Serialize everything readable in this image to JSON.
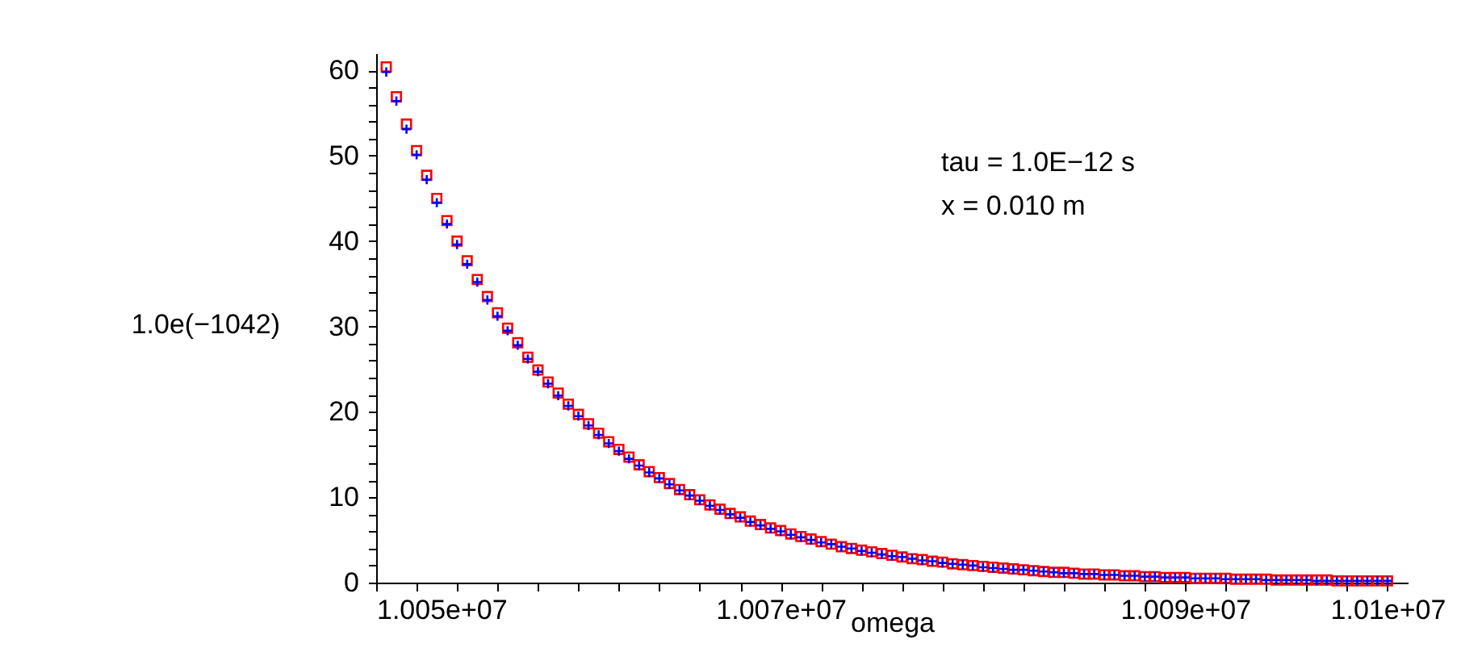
{
  "chart_data": {
    "type": "scatter",
    "xlabel": "omega",
    "ylabel": "1.0e(−1042)",
    "annotations": [
      "tau = 1.0E−12 s",
      "x = 0.010 m"
    ],
    "xlim": [
      10050000,
      10101000
    ],
    "ylim": [
      0,
      62
    ],
    "xticks": [
      {
        "value": 10050000,
        "label": "1.005e+07"
      },
      {
        "value": 10052000,
        "label": null
      },
      {
        "value": 10054000,
        "label": null
      },
      {
        "value": 10056000,
        "label": null
      },
      {
        "value": 10058000,
        "label": null
      },
      {
        "value": 10060000,
        "label": null
      },
      {
        "value": 10062000,
        "label": null
      },
      {
        "value": 10064000,
        "label": null
      },
      {
        "value": 10066000,
        "label": null
      },
      {
        "value": 10068000,
        "label": null
      },
      {
        "value": 10070000,
        "label": "1.007e+07"
      },
      {
        "value": 10072000,
        "label": null
      },
      {
        "value": 10074000,
        "label": null
      },
      {
        "value": 10076000,
        "label": null
      },
      {
        "value": 10078000,
        "label": null
      },
      {
        "value": 10080000,
        "label": null
      },
      {
        "value": 10082000,
        "label": null
      },
      {
        "value": 10084000,
        "label": null
      },
      {
        "value": 10086000,
        "label": null
      },
      {
        "value": 10088000,
        "label": null
      },
      {
        "value": 10090000,
        "label": "1.009e+07"
      },
      {
        "value": 10092000,
        "label": null
      },
      {
        "value": 10094000,
        "label": null
      },
      {
        "value": 10096000,
        "label": null
      },
      {
        "value": 10098000,
        "label": null
      },
      {
        "value": 10100000,
        "label": "1.01e+07"
      }
    ],
    "yticks": [
      0,
      {
        "value": 2,
        "label": null
      },
      {
        "value": 4,
        "label": null
      },
      {
        "value": 6,
        "label": null
      },
      {
        "value": 8,
        "label": null
      },
      10,
      {
        "value": 12,
        "label": null
      },
      {
        "value": 14,
        "label": null
      },
      {
        "value": 16,
        "label": null
      },
      {
        "value": 18,
        "label": null
      },
      20,
      {
        "value": 22,
        "label": null
      },
      {
        "value": 24,
        "label": null
      },
      {
        "value": 26,
        "label": null
      },
      {
        "value": 28,
        "label": null
      },
      30,
      {
        "value": 32,
        "label": null
      },
      {
        "value": 34,
        "label": null
      },
      {
        "value": 36,
        "label": null
      },
      {
        "value": 38,
        "label": null
      },
      40,
      {
        "value": 42,
        "label": null
      },
      {
        "value": 44,
        "label": null
      },
      {
        "value": 46,
        "label": null
      },
      {
        "value": 48,
        "label": null
      },
      50,
      {
        "value": 52,
        "label": null
      },
      {
        "value": 54,
        "label": null
      },
      {
        "value": 56,
        "label": null
      },
      {
        "value": 58,
        "label": null
      },
      60
    ],
    "x": [
      10050500,
      10051000,
      10051500,
      10052000,
      10052500,
      10053000,
      10053500,
      10054000,
      10054500,
      10055000,
      10055500,
      10056000,
      10056500,
      10057000,
      10057500,
      10058000,
      10058500,
      10059000,
      10059500,
      10060000,
      10060500,
      10061000,
      10061500,
      10062000,
      10062500,
      10063000,
      10063500,
      10064000,
      10064500,
      10065000,
      10065500,
      10066000,
      10066500,
      10067000,
      10067500,
      10068000,
      10068500,
      10069000,
      10069500,
      10070000,
      10070500,
      10071000,
      10071500,
      10072000,
      10072500,
      10073000,
      10073500,
      10074000,
      10074500,
      10075000,
      10075500,
      10076000,
      10076500,
      10077000,
      10077500,
      10078000,
      10078500,
      10079000,
      10079500,
      10080000,
      10080500,
      10081000,
      10081500,
      10082000,
      10082500,
      10083000,
      10083500,
      10084000,
      10084500,
      10085000,
      10085500,
      10086000,
      10086500,
      10087000,
      10087500,
      10088000,
      10088500,
      10089000,
      10089500,
      10090000,
      10090500,
      10091000,
      10091500,
      10092000,
      10092500,
      10093000,
      10093500,
      10094000,
      10094500,
      10095000,
      10095500,
      10096000,
      10096500,
      10097000,
      10097500,
      10098000,
      10098500,
      10099000,
      10099500,
      10100000
    ],
    "series": [
      {
        "color": "#ff0000",
        "marker": "square",
        "values": [
          60.4,
          56.9,
          53.7,
          50.6,
          47.7,
          45.0,
          42.4,
          40.0,
          37.7,
          35.5,
          33.5,
          31.6,
          29.8,
          28.1,
          26.4,
          24.9,
          23.5,
          22.2,
          20.9,
          19.7,
          18.6,
          17.5,
          16.5,
          15.6,
          14.7,
          13.8,
          13.0,
          12.3,
          11.6,
          10.9,
          10.3,
          9.7,
          9.1,
          8.6,
          8.1,
          7.7,
          7.2,
          6.8,
          6.4,
          6.1,
          5.7,
          5.4,
          5.1,
          4.8,
          4.5,
          4.2,
          4.0,
          3.8,
          3.6,
          3.4,
          3.2,
          3.0,
          2.8,
          2.7,
          2.5,
          2.4,
          2.2,
          2.1,
          2.0,
          1.9,
          1.8,
          1.7,
          1.6,
          1.5,
          1.4,
          1.3,
          1.2,
          1.2,
          1.1,
          1.0,
          1.0,
          0.9,
          0.9,
          0.8,
          0.8,
          0.7,
          0.7,
          0.6,
          0.6,
          0.6,
          0.5,
          0.5,
          0.5,
          0.5,
          0.4,
          0.4,
          0.4,
          0.4,
          0.3,
          0.3,
          0.3,
          0.3,
          0.3,
          0.3,
          0.2,
          0.2,
          0.2,
          0.2,
          0.2,
          0.2
        ]
      },
      {
        "color": "#0000ff",
        "marker": "cross",
        "values": [
          59.8,
          56.4,
          53.1,
          50.1,
          47.2,
          44.5,
          42.0,
          39.6,
          37.3,
          35.2,
          33.1,
          31.2,
          29.5,
          27.8,
          26.2,
          24.7,
          23.3,
          21.9,
          20.7,
          19.5,
          18.4,
          17.3,
          16.3,
          15.4,
          14.5,
          13.7,
          12.9,
          12.2,
          11.5,
          10.8,
          10.2,
          9.6,
          9.0,
          8.5,
          8.0,
          7.6,
          7.1,
          6.7,
          6.3,
          6.0,
          5.6,
          5.3,
          5.0,
          4.7,
          4.5,
          4.2,
          4.0,
          3.7,
          3.5,
          3.3,
          3.1,
          3.0,
          2.8,
          2.6,
          2.5,
          2.3,
          2.2,
          2.1,
          2.0,
          1.8,
          1.7,
          1.6,
          1.5,
          1.5,
          1.4,
          1.3,
          1.2,
          1.1,
          1.1,
          1.0,
          1.0,
          0.9,
          0.9,
          0.8,
          0.8,
          0.7,
          0.7,
          0.6,
          0.6,
          0.6,
          0.5,
          0.5,
          0.5,
          0.4,
          0.4,
          0.4,
          0.4,
          0.3,
          0.3,
          0.3,
          0.3,
          0.3,
          0.2,
          0.2,
          0.2,
          0.2,
          0.2,
          0.2,
          0.2,
          0.2
        ]
      }
    ]
  }
}
